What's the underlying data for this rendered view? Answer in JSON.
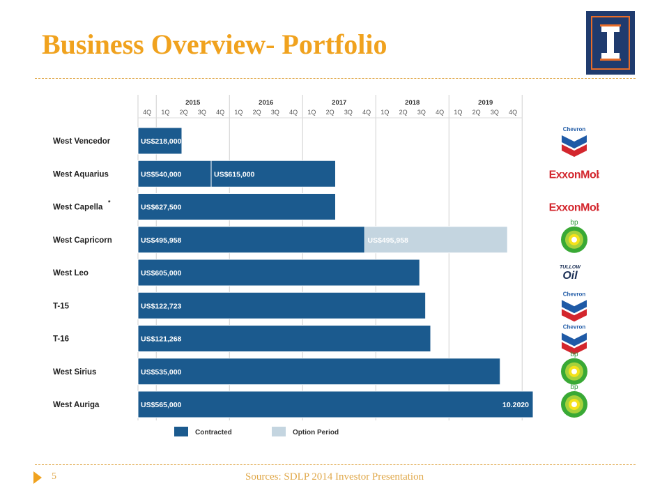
{
  "slide": {
    "title": "Business Overview- Portfolio",
    "page_number": "5",
    "sources": "Sources: SDLP 2014 Investor Presentation"
  },
  "colors": {
    "accent": "#f0a21e",
    "contracted": "#1b5a8e",
    "option": "#c4d5e0"
  },
  "chart_data": {
    "type": "bar",
    "orientation": "horizontal-timeline",
    "years": [
      "2015",
      "2016",
      "2017",
      "2018",
      "2019"
    ],
    "quarters": [
      "4Q",
      "1Q",
      "2Q",
      "3Q",
      "4Q",
      "1Q",
      "2Q",
      "3Q",
      "4Q",
      "1Q",
      "2Q",
      "3Q",
      "4Q",
      "1Q",
      "2Q",
      "3Q",
      "4Q",
      "1Q",
      "2Q",
      "3Q",
      "4Q"
    ],
    "legend": [
      {
        "label": "Contracted",
        "color": "#1b5a8e"
      },
      {
        "label": "Option Period",
        "color": "#c4d5e0"
      }
    ],
    "rigs": [
      {
        "name": "West Vencedor",
        "client": "Chevron",
        "segments": [
          {
            "label": "US$218,000",
            "start": 0,
            "end": 0.6,
            "type": "contracted"
          }
        ]
      },
      {
        "name": "West Aquarius",
        "client": "ExxonMobil",
        "segments": [
          {
            "label": "US$540,000",
            "start": 0,
            "end": 1.0,
            "type": "contracted"
          },
          {
            "label": "US$615,000",
            "start": 1.0,
            "end": 2.7,
            "type": "contracted"
          }
        ]
      },
      {
        "name": "West Capella",
        "name_marker": "*",
        "client": "ExxonMobil",
        "segments": [
          {
            "label": "US$627,500",
            "start": 0,
            "end": 2.7,
            "type": "contracted"
          }
        ]
      },
      {
        "name": "West Capricorn",
        "client": "bp",
        "segments": [
          {
            "label": "US$495,958",
            "start": 0,
            "end": 3.1,
            "type": "contracted"
          },
          {
            "label": "US$495,958",
            "start": 3.1,
            "end": 5.05,
            "type": "option"
          }
        ]
      },
      {
        "name": "West Leo",
        "client": "Tullow Oil",
        "segments": [
          {
            "label": "US$605,000",
            "start": 0,
            "end": 3.85,
            "type": "contracted"
          }
        ]
      },
      {
        "name": "T-15",
        "client": "Chevron",
        "segments": [
          {
            "label": "US$122,723",
            "start": 0,
            "end": 3.93,
            "type": "contracted"
          }
        ]
      },
      {
        "name": "T-16",
        "client": "Chevron",
        "segments": [
          {
            "label": "US$121,268",
            "start": 0,
            "end": 4.0,
            "type": "contracted"
          }
        ]
      },
      {
        "name": "West Sirius",
        "client": "bp",
        "segments": [
          {
            "label": "US$535,000",
            "start": 0,
            "end": 4.95,
            "type": "contracted"
          }
        ]
      },
      {
        "name": "West Auriga",
        "client": "bp",
        "segments": [
          {
            "label": "US$565,000",
            "start": 0,
            "end": 5.4,
            "type": "contracted",
            "end_label": "10.2020"
          }
        ]
      }
    ]
  }
}
